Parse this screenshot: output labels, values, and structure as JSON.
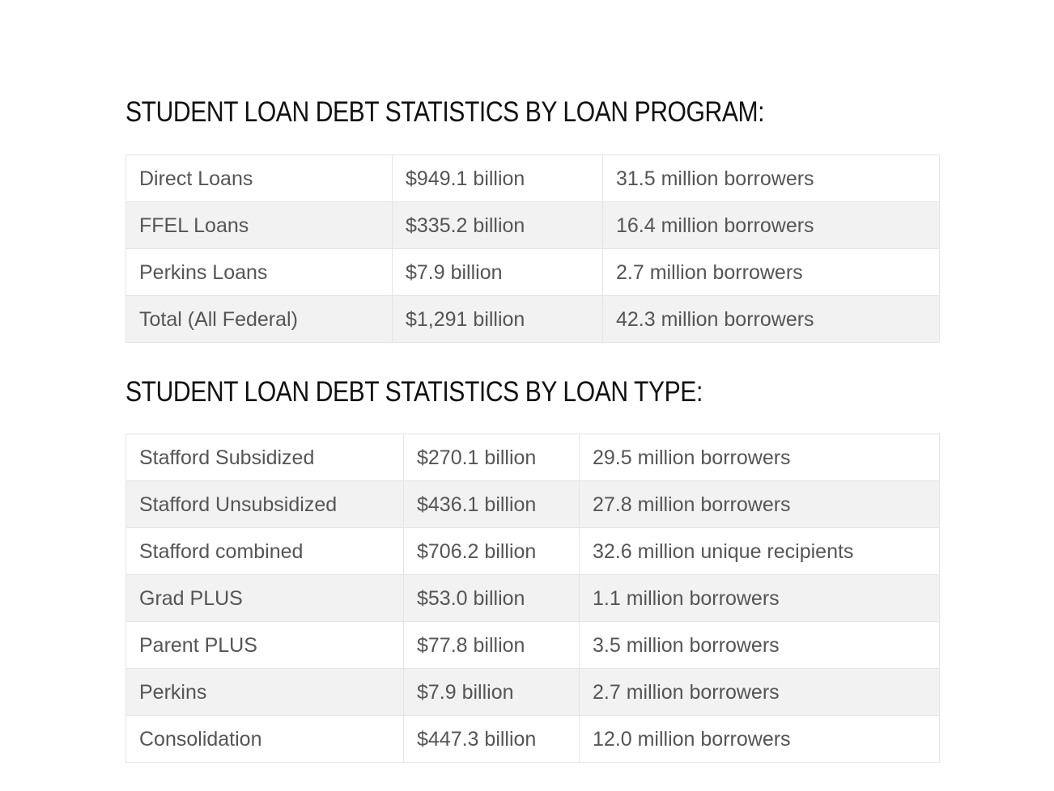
{
  "sections": [
    {
      "title": "STUDENT LOAN DEBT STATISTICS BY LOAN PROGRAM:",
      "rows": [
        [
          "Direct Loans",
          "$949.1 billion",
          "31.5 million borrowers"
        ],
        [
          "FFEL Loans",
          "$335.2 billion",
          "16.4 million borrowers"
        ],
        [
          "Perkins Loans",
          "$7.9 billion",
          "2.7 million borrowers"
        ],
        [
          "Total (All Federal)",
          "$1,291 billion",
          "42.3 million borrowers"
        ]
      ]
    },
    {
      "title": "STUDENT LOAN DEBT STATISTICS BY LOAN TYPE:",
      "rows": [
        [
          "Stafford Subsidized",
          "$270.1 billion",
          "29.5 million borrowers"
        ],
        [
          "Stafford Unsubsidized",
          "$436.1 billion",
          "27.8 million borrowers"
        ],
        [
          "Stafford combined",
          "$706.2 billion",
          "32.6 million unique recipients"
        ],
        [
          "Grad PLUS",
          "$53.0 billion",
          "1.1 million borrowers"
        ],
        [
          "Parent PLUS",
          "$77.8 billion",
          "3.5 million borrowers"
        ],
        [
          "Perkins",
          "$7.9 billion",
          "2.7 million borrowers"
        ],
        [
          "Consolidation",
          "$447.3 billion",
          "12.0 million borrowers"
        ]
      ]
    }
  ],
  "colors": {
    "title": "#111111",
    "cell_text": "#555555",
    "row_stripe": "#f2f2f2",
    "border": "#e4e4e4"
  }
}
